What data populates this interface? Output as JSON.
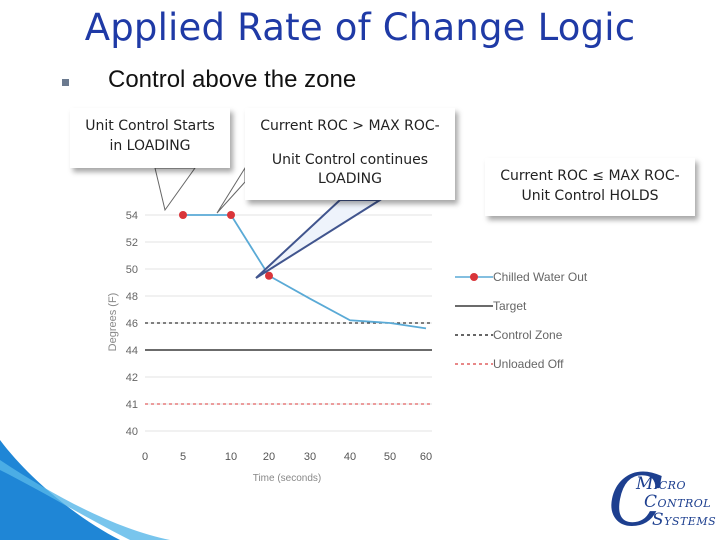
{
  "title": "Applied Rate of Change Logic",
  "bullet": "Control above the zone",
  "callouts": {
    "left": {
      "line1": "Unit Control Starts",
      "line2": "in LOADING"
    },
    "middle": {
      "line1": "Current ROC > MAX ROC-",
      "line2": "Unit Control continues",
      "line3": "LOADING"
    },
    "right": {
      "line1": "Current ROC ≤ MAX ROC-",
      "line2": "Unit Control HOLDS"
    }
  },
  "logo": {
    "r1_cap": "M",
    "r1_rest": "ICRO",
    "r2_cap": "C",
    "r2_rest": "ONTROL",
    "r3_cap": "S",
    "r3_rest": "YSTEMS"
  },
  "colors": {
    "title": "#1f3aa6",
    "series_chw": "#5aaad6",
    "marker": "#d9353a",
    "target": "#3a3a3a",
    "unloaded": "#e06060"
  },
  "chart_data": {
    "type": "line",
    "xlabel": "Time (seconds)",
    "ylabel": "Degrees (F)",
    "x_ticks": [
      "0",
      "5",
      "10",
      "20",
      "30",
      "40",
      "50",
      "60"
    ],
    "y_ticks": [
      54,
      52,
      50,
      48,
      46,
      44,
      42,
      41,
      40
    ],
    "series": [
      {
        "name": "Chilled Water Out",
        "style": "line+markers",
        "x": [
          5,
          10,
          20,
          30,
          40,
          50,
          60
        ],
        "y": [
          54,
          54,
          49.5,
          47.8,
          46.2,
          46.0,
          45.6
        ]
      },
      {
        "name": "Target",
        "style": "solid",
        "value": 44
      },
      {
        "name": "Control Zone",
        "style": "dashed",
        "value": 46
      },
      {
        "name": "Unloaded Off",
        "style": "dashed-red",
        "value": 41
      }
    ],
    "markers": [
      {
        "x": 5,
        "y": 54
      },
      {
        "x": 10,
        "y": 54
      },
      {
        "x": 20,
        "y": 49.5
      }
    ],
    "legend": [
      "Chilled Water Out",
      "Target",
      "Control Zone",
      "Unloaded Off"
    ],
    "legend_position": "right"
  }
}
